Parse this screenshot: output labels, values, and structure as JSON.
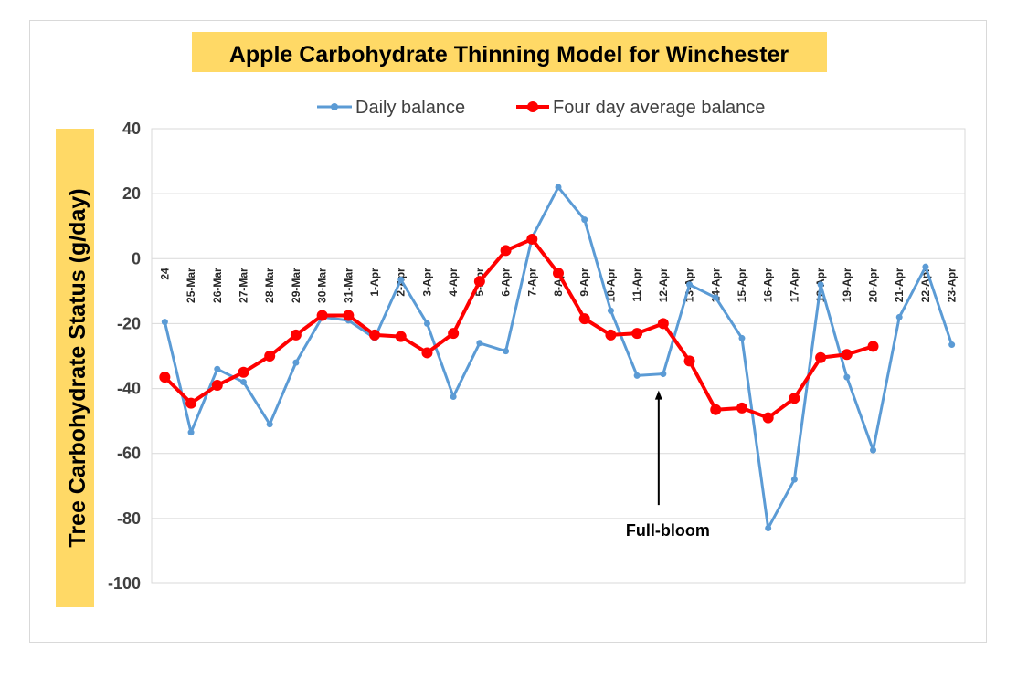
{
  "chart_data": {
    "type": "line",
    "title": "Apple Carbohydrate Thinning Model for Winchester",
    "ylabel": "Tree Carbohydrate Status (g/day)",
    "xlabel": "",
    "ylim": [
      -100,
      40
    ],
    "yticks": [
      40,
      20,
      0,
      -20,
      -40,
      -60,
      -80,
      -100
    ],
    "grid": true,
    "legend_position": "top",
    "categories": [
      "24",
      "25-Mar",
      "26-Mar",
      "27-Mar",
      "28-Mar",
      "29-Mar",
      "30-Mar",
      "31-Mar",
      "1-Apr",
      "2-Apr",
      "3-Apr",
      "4-Apr",
      "5-Apr",
      "6-Apr",
      "7-Apr",
      "8-Apr",
      "9-Apr",
      "10-Apr",
      "11-Apr",
      "12-Apr",
      "13-Apr",
      "14-Apr",
      "15-Apr",
      "16-Apr",
      "17-Apr",
      "18-Apr",
      "19-Apr",
      "20-Apr",
      "21-Apr",
      "22-Apr",
      "23-Apr"
    ],
    "series": [
      {
        "name": "Daily balance",
        "color": "#5b9bd5",
        "values": [
          -19.5,
          -53.5,
          -34,
          -38,
          -51,
          -32,
          -18,
          -19,
          -24.5,
          -6.5,
          -20,
          -42.5,
          -26,
          -28.5,
          6.5,
          22,
          12,
          -16,
          -36,
          -35.5,
          -8,
          -12,
          -24.5,
          -83,
          -68,
          -8,
          -36.5,
          -59,
          -18,
          -2.5,
          -26.5
        ]
      },
      {
        "name": "Four day average balance",
        "color": "#ff0000",
        "values": [
          -36.5,
          -44.5,
          -39,
          -35,
          -30,
          -23.5,
          -17.5,
          -17.5,
          -23.5,
          -24,
          -29,
          -23,
          -7,
          2.5,
          6,
          -4.5,
          -18.5,
          -23.5,
          -23,
          -20,
          -31.5,
          -46.5,
          -46,
          -49,
          -43,
          -30.5,
          -29.5,
          -27,
          null,
          null,
          null
        ]
      }
    ],
    "annotations": [
      {
        "text": "Full-bloom",
        "points_to_category": "12-Apr",
        "arrow_tip_value": -40,
        "arrow_tail_value": -77
      }
    ]
  }
}
